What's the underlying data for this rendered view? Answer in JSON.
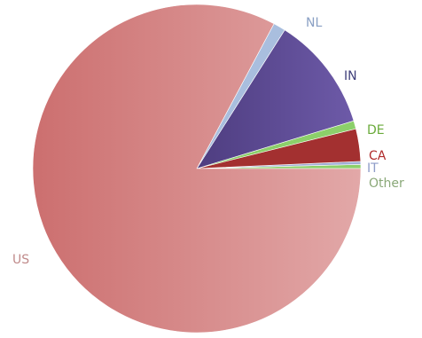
{
  "chart_data": {
    "type": "pie",
    "title": "",
    "start_angle_deg": 0,
    "direction": "counterclockwise",
    "slices": [
      {
        "label": "Other",
        "value": 0.4,
        "color": "#8ccf6a",
        "gradient_to": "#8ccf6a",
        "label_color": "#8aa878"
      },
      {
        "label": "IT",
        "value": 0.3,
        "color": "#a0aed6",
        "gradient_to": "#a0aed6",
        "label_color": "#8e9cc8"
      },
      {
        "label": "CA",
        "value": 3.2,
        "color": "#a33030",
        "gradient_to": "#b84040",
        "label_color": "#b02a2a"
      },
      {
        "label": "DE",
        "value": 0.8,
        "color": "#8ccf6a",
        "gradient_to": "#8ccf6a",
        "label_color": "#6aaa3a"
      },
      {
        "label": "IN",
        "value": 11.3,
        "color": "#4e3d80",
        "gradient_to": "#6d5aa8",
        "label_color": "#3f3f7a"
      },
      {
        "label": "NL",
        "value": 1.2,
        "color": "#a9bede",
        "gradient_to": "#c0d0ea",
        "label_color": "#8aa0c4"
      },
      {
        "label": "US",
        "value": 82.8,
        "color": "#cc6f6f",
        "gradient_to": "#e2a8a8",
        "label_color": "#c08a8a"
      }
    ]
  }
}
